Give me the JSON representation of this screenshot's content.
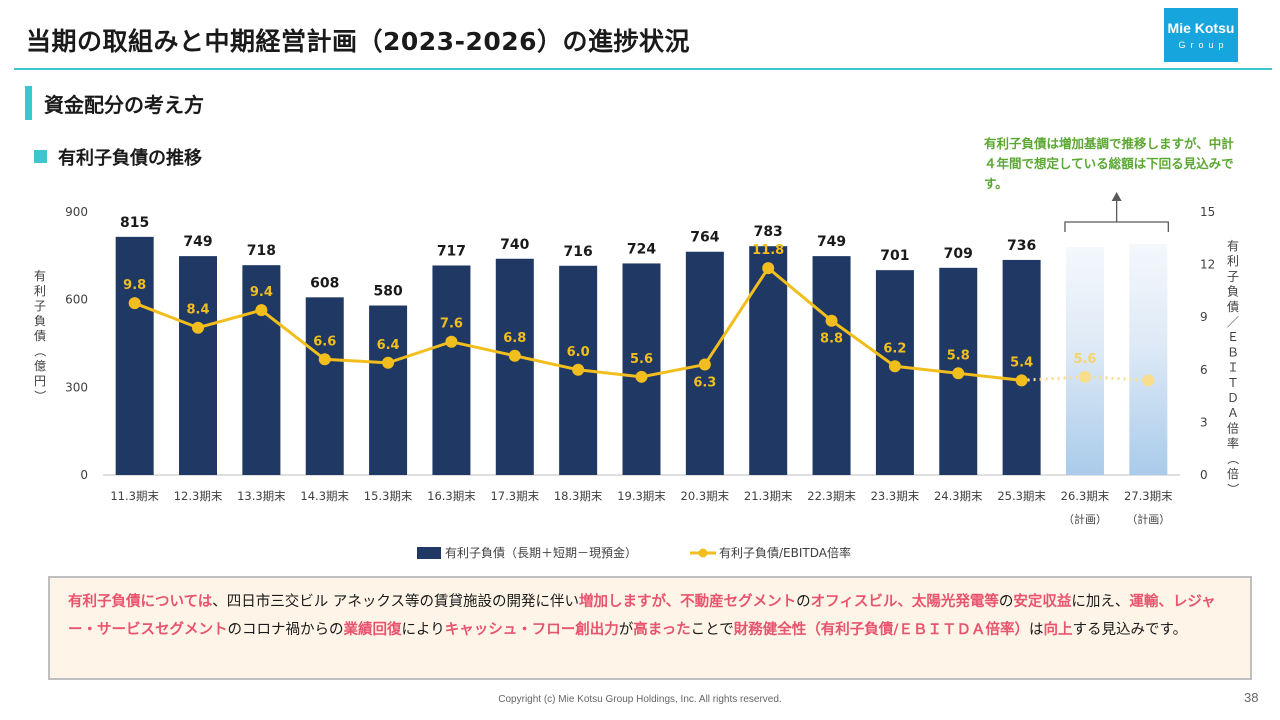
{
  "header": {
    "title": "当期の取組みと中期経営計画（2023-2026）の進捗状況",
    "logo_name": "Mie Kotsu",
    "logo_sub": "Group"
  },
  "section": {
    "title": "資金配分の考え方",
    "subtitle": "有利子負債の推移"
  },
  "annotation": {
    "text": "有利子負債は増加基調で推移しますが、中計４年間で想定している総額は下回る見込みです。"
  },
  "chart_data": {
    "type": "bar",
    "categories": [
      "11.3期末",
      "12.3期末",
      "13.3期末",
      "14.3期末",
      "15.3期末",
      "16.3期末",
      "17.3期末",
      "18.3期末",
      "19.3期末",
      "20.3期末",
      "21.3期末",
      "22.3期末",
      "23.3期末",
      "24.3期末",
      "25.3期末",
      "26.3期末",
      "27.3期末"
    ],
    "category_notes": [
      "",
      "",
      "",
      "",
      "",
      "",
      "",
      "",
      "",
      "",
      "",
      "",
      "",
      "",
      "",
      "（計画）",
      "（計画）"
    ],
    "series": [
      {
        "name": "有利子負債（長期＋短期－現預金）",
        "kind": "bar",
        "axis": "left",
        "color": "#1f3864",
        "values": [
          815,
          749,
          718,
          608,
          580,
          717,
          740,
          716,
          724,
          764,
          783,
          749,
          701,
          709,
          736,
          780,
          790
        ],
        "value_labels": [
          "815",
          "749",
          "718",
          "608",
          "580",
          "717",
          "740",
          "716",
          "724",
          "764",
          "783",
          "749",
          "701",
          "709",
          "736",
          "",
          ""
        ],
        "planned_from_index": 15
      },
      {
        "name": "有利子負債/EBITDA倍率",
        "kind": "line",
        "axis": "right",
        "color": "#f2be1d",
        "values": [
          9.8,
          8.4,
          9.4,
          6.6,
          6.4,
          7.6,
          6.8,
          6.0,
          5.6,
          6.3,
          11.8,
          8.8,
          6.2,
          5.8,
          5.4,
          5.6,
          5.4
        ],
        "value_labels": [
          "9.8",
          "8.4",
          "9.4",
          "6.6",
          "6.4",
          "7.6",
          "6.8",
          "6.0",
          "5.6",
          "6.3",
          "11.8",
          "8.8",
          "6.2",
          "5.8",
          "5.4",
          "5.6",
          ""
        ],
        "planned_from_index": 15
      }
    ],
    "y_left": {
      "label": "有利子負債（億円）",
      "ylim": [
        0,
        900
      ],
      "ticks": [
        0,
        300,
        600,
        900
      ]
    },
    "y_right": {
      "label": "有利子負債／ＥＢＩＴＤＡ倍率（倍）",
      "ylim": [
        0,
        15
      ],
      "ticks": [
        0,
        3,
        6,
        9,
        12,
        15
      ]
    },
    "legend_position": "bottom-center",
    "grid": false
  },
  "footer": {
    "segments": [
      {
        "text": "有利子負債については",
        "hl": true
      },
      {
        "text": "、四日市三交ビル アネックス等の賃貸施設の開発に伴い",
        "hl": false
      },
      {
        "text": "増加しますが、不動産セグメント",
        "hl": true
      },
      {
        "text": "の",
        "hl": false
      },
      {
        "text": "オフィスビル、太陽光発電等",
        "hl": true
      },
      {
        "text": "の",
        "hl": false
      },
      {
        "text": "安定収益",
        "hl": true
      },
      {
        "text": "に加え、",
        "hl": false
      },
      {
        "text": "運輸、レジャー・サービスセグメント",
        "hl": true
      },
      {
        "text": "のコロナ禍からの",
        "hl": false
      },
      {
        "text": "業績回復",
        "hl": true
      },
      {
        "text": "により",
        "hl": false
      },
      {
        "text": "キャッシュ・フロー創出力",
        "hl": true
      },
      {
        "text": "が",
        "hl": false
      },
      {
        "text": "高まった",
        "hl": true
      },
      {
        "text": "ことで",
        "hl": false
      },
      {
        "text": "財務健全性（有利子負債/ＥＢＩＴＤＡ倍率）",
        "hl": true
      },
      {
        "text": "は",
        "hl": false
      },
      {
        "text": "向上",
        "hl": true
      },
      {
        "text": "する見込みです。",
        "hl": false
      }
    ]
  },
  "copyright": "Copyright (c) Mie Kotsu Group Holdings, Inc. All rights reserved.",
  "page_number": "38"
}
